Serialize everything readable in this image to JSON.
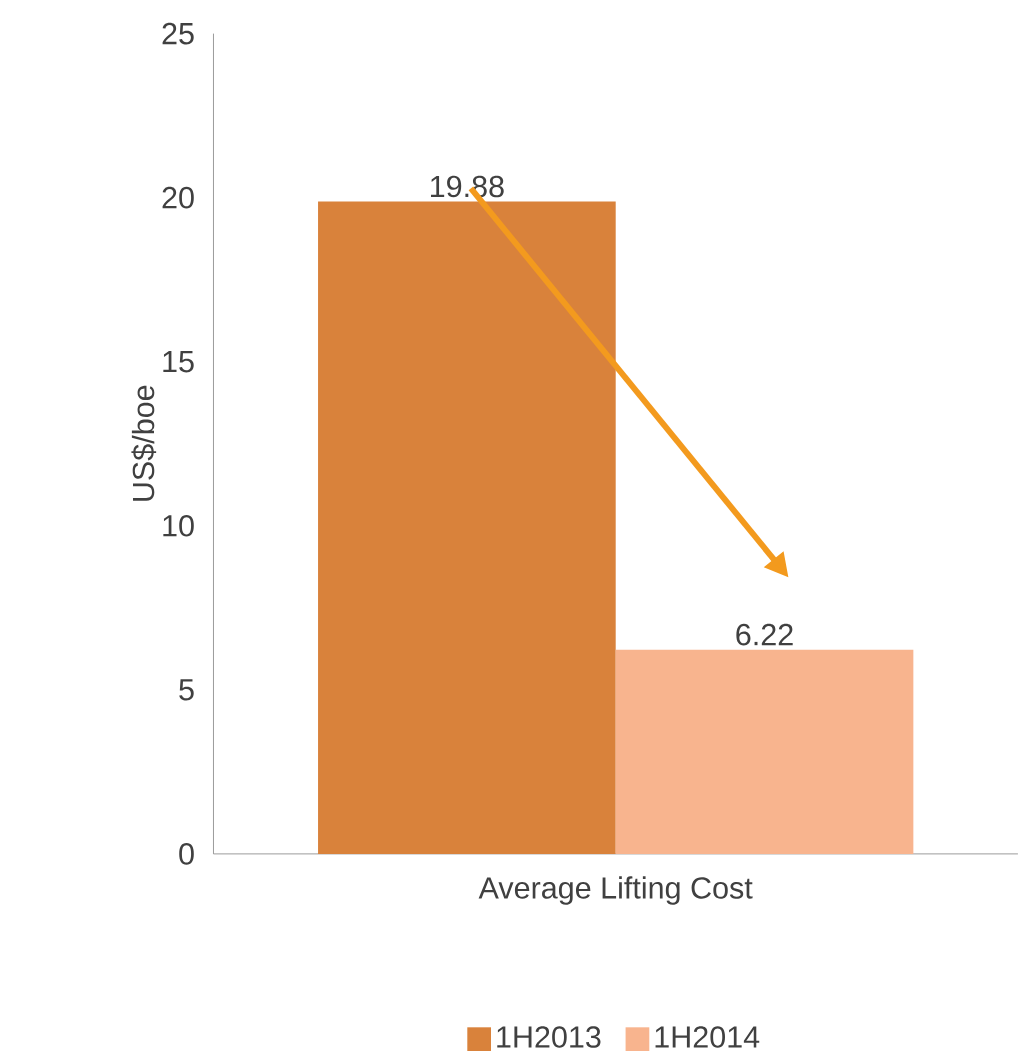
{
  "chart_data": {
    "type": "bar",
    "ylabel": "US$/boe",
    "categories": [
      "Average Lifting Cost"
    ],
    "series": [
      {
        "name": "1H2013",
        "color": "#d9823b",
        "values": [
          19.88
        ]
      },
      {
        "name": "1H2014",
        "color": "#f8b48e",
        "values": [
          6.22
        ]
      }
    ],
    "ylim": [
      0,
      25
    ],
    "yticks": [
      0,
      5,
      10,
      15,
      20,
      25
    ],
    "data_labels": true,
    "legend": "bottom",
    "grid": false
  }
}
